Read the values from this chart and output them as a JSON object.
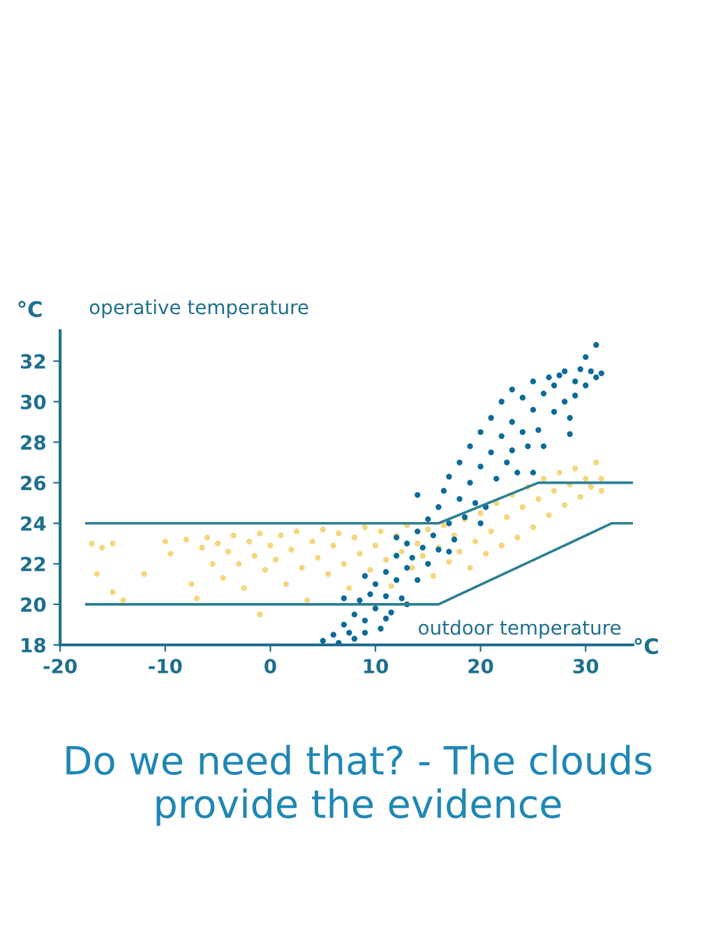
{
  "chart_data": {
    "type": "scatter",
    "title": "Do we need that? - The clouds provide the evidence",
    "xlabel": "outdoor temperature",
    "ylabel": "operative temperature",
    "annotations": [
      "°C",
      "°C"
    ],
    "xlim": [
      -20,
      34.5
    ],
    "ylim": [
      18,
      33.5
    ],
    "xticks": [
      -20,
      -10,
      0,
      10,
      20,
      30
    ],
    "yticks": [
      18,
      20,
      22,
      24,
      26,
      28,
      30,
      32
    ],
    "grid": false,
    "marker": "circle",
    "series": [
      {
        "color": "#f4d67c",
        "x": [
          -17,
          -16.5,
          -16,
          -15,
          -15,
          -14,
          -12,
          -10,
          -9.5,
          -8,
          -7.5,
          -7,
          -6.5,
          -6,
          -5.5,
          -5,
          -4.5,
          -4,
          -3.5,
          -3,
          -2.5,
          -2,
          -1.5,
          -1,
          -1,
          -0.5,
          0,
          0.5,
          1,
          1.5,
          2,
          2.5,
          3,
          3.5,
          4,
          4.5,
          5,
          5.5,
          6,
          6.5,
          7,
          7.5,
          8,
          8.5,
          9,
          9.5,
          10,
          10.5,
          11,
          11.5,
          12,
          12.5,
          13,
          13.5,
          14,
          14.5,
          15,
          15.5,
          16,
          16.5,
          17,
          17.5,
          18,
          18.5,
          19,
          19.5,
          20,
          20.5,
          21,
          21.5,
          22,
          22.5,
          23,
          23.5,
          24,
          24.5,
          25,
          25.5,
          26,
          26.5,
          27,
          27.5,
          28,
          28.5,
          29,
          29.5,
          30,
          30.5,
          31,
          31.5,
          31.5
        ],
        "values": [
          23,
          21.5,
          22.8,
          20.6,
          23,
          20.2,
          21.5,
          23.1,
          22.5,
          23.2,
          21,
          20.3,
          22.8,
          23.3,
          22,
          23,
          21.3,
          22.6,
          23.4,
          22,
          20.8,
          23.1,
          22.4,
          19.5,
          23.5,
          21.7,
          22.9,
          22.2,
          23.4,
          21,
          22.7,
          23.6,
          21.8,
          20.2,
          23.1,
          22.3,
          23.7,
          21.5,
          22.9,
          23.5,
          22,
          20.8,
          23.3,
          22.5,
          23.8,
          21.7,
          22.9,
          23.6,
          22.2,
          20.9,
          23.4,
          22.6,
          23.9,
          21.8,
          23,
          22.4,
          23.7,
          21.4,
          22.8,
          23.9,
          22.1,
          23.4,
          22.6,
          24.2,
          21.8,
          23.1,
          24.5,
          22.5,
          23.6,
          25,
          22.9,
          24.3,
          25.4,
          23.3,
          24.8,
          25.8,
          23.8,
          25.2,
          26.2,
          24.4,
          25.6,
          26.5,
          24.9,
          25.9,
          26.7,
          25.3,
          26.2,
          25.8,
          27,
          26.2,
          25.6
        ]
      },
      {
        "color": "#0b6b9a",
        "x": [
          5,
          6,
          6.5,
          7,
          7.5,
          8,
          8,
          8.5,
          9,
          9,
          9.5,
          10,
          10,
          10.5,
          11,
          11,
          11.5,
          12,
          12,
          12.5,
          13,
          13,
          13.5,
          14,
          14,
          14.5,
          15,
          15,
          15.5,
          16,
          16,
          16.5,
          17,
          17,
          17.5,
          18,
          18,
          18.5,
          19,
          19,
          19.5,
          20,
          20,
          20.5,
          21,
          21,
          21.5,
          22,
          22,
          22.5,
          23,
          23,
          23.5,
          24,
          24,
          24.5,
          25,
          25,
          25.5,
          26,
          26,
          26.5,
          27,
          27,
          27.5,
          28,
          28,
          28.5,
          29,
          29,
          29.5,
          30,
          30,
          30.5,
          31,
          31,
          31.5,
          14,
          12,
          20,
          25,
          9,
          7,
          17,
          23,
          11,
          13,
          28.5
        ],
        "values": [
          18.2,
          18.5,
          18.1,
          19,
          18.6,
          19.5,
          18.3,
          20.2,
          19.2,
          18.6,
          20.5,
          19.8,
          21,
          18.8,
          20.4,
          21.6,
          19.6,
          21.2,
          22.4,
          20.3,
          21.8,
          23,
          22.3,
          21.2,
          23.6,
          22.8,
          24.2,
          22,
          23.4,
          24.8,
          22.7,
          25.6,
          24,
          26.3,
          23.2,
          25.2,
          27,
          24.3,
          26,
          27.8,
          25,
          26.8,
          28.5,
          24.8,
          27.5,
          29.2,
          26.2,
          28.3,
          30,
          27,
          29,
          30.6,
          26.5,
          28.5,
          30.2,
          27.8,
          29.6,
          31,
          28.6,
          30.4,
          27.8,
          31.2,
          29.5,
          30.8,
          31.3,
          30,
          31.5,
          29.2,
          31,
          30.3,
          31.6,
          30.8,
          32.2,
          31.5,
          31.2,
          32.8,
          31.4,
          25.4,
          23.3,
          24,
          26.5,
          21.4,
          20.3,
          22.6,
          27.6,
          19.3,
          20,
          28.4
        ]
      },
      {
        "type": "line",
        "color": "#2a7f93",
        "marker": "none",
        "x": [
          -17.5,
          16,
          25.5,
          34.5
        ],
        "values": [
          24,
          24,
          26,
          26
        ]
      },
      {
        "type": "line",
        "color": "#2a7f93",
        "marker": "none",
        "x": [
          -17.5,
          16,
          32.5,
          34.5
        ],
        "values": [
          20,
          20,
          24,
          24
        ]
      }
    ]
  }
}
